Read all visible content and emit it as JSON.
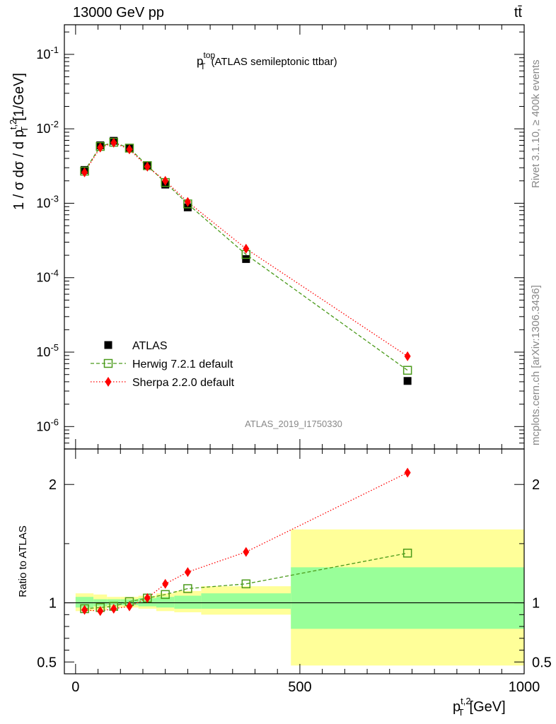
{
  "header": {
    "energy_label": "13000 GeV pp",
    "process_label": "tt̄"
  },
  "side": {
    "rivet_label": "Rivet 3.1.10, ≥ 400k events",
    "mcplots_label": "mcplots.cern.ch [arXiv:1306.3436]"
  },
  "chart_data": [
    {
      "type": "scatter",
      "panel": "main",
      "title": "p_T^top (ATLAS semileptonic ttbar)",
      "watermark": "ATLAS_2019_I1750330",
      "ylabel": "1 / σ dσ / d p_T^{t,2} [1/GeV]",
      "yscale": "log",
      "ylim": [
        5e-07,
        0.25
      ],
      "xlim": [
        -25,
        1000
      ],
      "y_ticks": [
        "10^-6",
        "10^-5",
        "10^-4",
        "10^-3",
        "10^-2",
        "10^-1"
      ],
      "legend_position": "bottom-left",
      "bins": [
        [
          0,
          40
        ],
        [
          40,
          70
        ],
        [
          70,
          100
        ],
        [
          100,
          140
        ],
        [
          140,
          180
        ],
        [
          180,
          220
        ],
        [
          220,
          280
        ],
        [
          280,
          480
        ],
        [
          480,
          1000
        ]
      ],
      "x": [
        20,
        55,
        85,
        120,
        160,
        200,
        250,
        380,
        740
      ],
      "series": [
        {
          "name": "ATLAS",
          "style": "black-square",
          "color": "#000000",
          "values": [
            0.0028,
            0.006,
            0.0069,
            0.0055,
            0.0032,
            0.00178,
            0.00088,
            0.000178,
            4.1e-06
          ]
        },
        {
          "name": "Herwig 7.2.1 default",
          "style": "green-open-square-dashed",
          "color": "#4a9a1a",
          "values": [
            0.0027,
            0.0058,
            0.0066,
            0.0055,
            0.0032,
            0.0019,
            0.00098,
            0.000205,
            5.7e-06
          ]
        },
        {
          "name": "Sherpa 2.2.0 default",
          "style": "red-diamond-dotted",
          "color": "#ff0000",
          "values": [
            0.0026,
            0.0056,
            0.0065,
            0.0053,
            0.0031,
            0.002,
            0.00104,
            0.000245,
            8.8e-06
          ]
        }
      ]
    },
    {
      "type": "scatter",
      "panel": "ratio",
      "ylabel": "Ratio to ATLAS",
      "xlabel": "p_T^{t,2} [GeV]",
      "ylim": [
        0.4,
        2.3
      ],
      "xlim": [
        -25,
        1000
      ],
      "y_tick_labels": [
        "0.5",
        "1",
        "2"
      ],
      "x_tick_labels": [
        "0",
        "500",
        "1000"
      ],
      "reference": 1,
      "bands": {
        "stat_color": "#99ff99",
        "total_color": "#ffff99",
        "stat": [
          [
            0.96,
            1.05
          ],
          [
            0.97,
            1.03
          ],
          [
            0.98,
            1.03
          ],
          [
            0.98,
            1.03
          ],
          [
            0.97,
            1.04
          ],
          [
            0.96,
            1.05
          ],
          [
            0.95,
            1.06
          ],
          [
            0.95,
            1.08
          ],
          [
            0.78,
            1.3
          ]
        ],
        "total": [
          [
            0.93,
            1.08
          ],
          [
            0.94,
            1.07
          ],
          [
            0.96,
            1.05
          ],
          [
            0.96,
            1.05
          ],
          [
            0.95,
            1.06
          ],
          [
            0.93,
            1.08
          ],
          [
            0.92,
            1.1
          ],
          [
            0.9,
            1.14
          ],
          [
            0.47,
            1.62
          ]
        ]
      },
      "series": [
        {
          "name": "Herwig 7.2.1 default",
          "color": "#4a9a1a",
          "values": [
            0.95,
            0.96,
            0.97,
            1.01,
            1.04,
            1.07,
            1.12,
            1.16,
            1.42
          ]
        },
        {
          "name": "Sherpa 2.2.0 default",
          "color": "#ff0000",
          "values": [
            0.94,
            0.93,
            0.95,
            0.97,
            1.04,
            1.16,
            1.26,
            1.43,
            2.1
          ]
        }
      ]
    }
  ]
}
